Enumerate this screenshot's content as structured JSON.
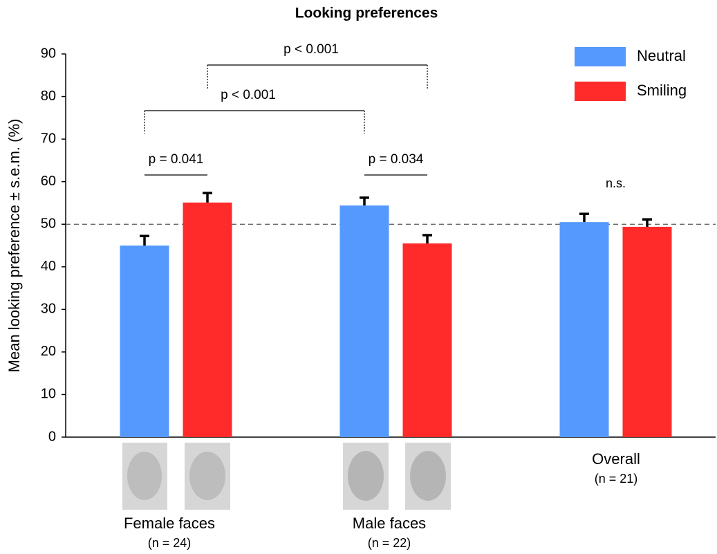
{
  "chart_data": {
    "type": "bar",
    "title": "Looking preferences",
    "y_label": "Mean looking preference ± s.e.m. (%)",
    "categories": [
      "Female faces",
      "Male faces",
      "Overall"
    ],
    "category_notes": [
      "(n = 24)",
      "(n = 22)",
      "(n = 21)"
    ],
    "series": [
      {
        "name": "Neutral",
        "color": "#5599ff",
        "values": [
          45.0,
          54.4,
          50.5
        ],
        "errors": [
          2.4,
          2.0,
          2.1
        ]
      },
      {
        "name": "Smiling",
        "color": "#ff2a2a",
        "values": [
          55.1,
          45.5,
          49.4
        ],
        "errors": [
          2.4,
          2.1,
          1.9
        ]
      }
    ],
    "ylim": [
      0,
      90
    ],
    "yticks": [
      0,
      10,
      20,
      30,
      40,
      50,
      60,
      70,
      80,
      90
    ],
    "reference_line": 50,
    "legend": "upper right",
    "annotations": [
      "p = 0.041",
      "p = 0.034",
      "p < 0.001",
      "p < 0.001",
      "n.s."
    ]
  }
}
